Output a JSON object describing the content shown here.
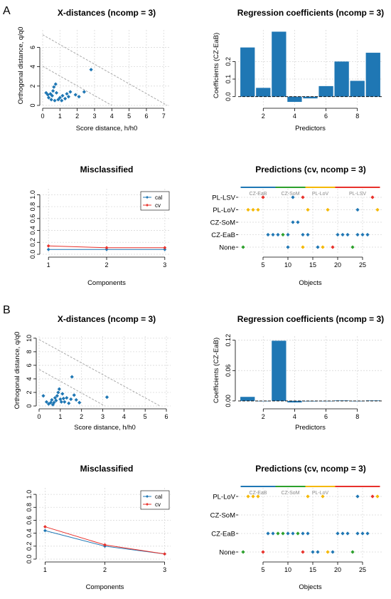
{
  "panel_labels": [
    "A",
    "B"
  ],
  "colors": {
    "blue": "#1f77b4",
    "red": "#e8312b",
    "green": "#2ca02c",
    "orange": "#f5b800",
    "grid": "#d9d9d9",
    "limit": "#a0a0a0"
  },
  "legend_labels": {
    "cal": "cal",
    "cv": "cv"
  },
  "chart_data": [
    {
      "id": "A-xdist",
      "panel": "A",
      "type": "scatter",
      "title": "X-distances (ncomp = 3)",
      "xlabel": "Score distance, h/h0",
      "ylabel": "Orthogonal distance, q/q0",
      "xlim": [
        0,
        7.4
      ],
      "ylim": [
        0,
        7.8
      ],
      "xticks": [
        0,
        1,
        2,
        3,
        4,
        5,
        6,
        7
      ],
      "yticks": [
        0,
        2,
        4,
        6
      ],
      "points": [
        [
          0.2,
          1.3
        ],
        [
          0.3,
          1.1
        ],
        [
          0.35,
          0.8
        ],
        [
          0.45,
          1.2
        ],
        [
          0.5,
          0.6
        ],
        [
          0.55,
          1.0
        ],
        [
          0.6,
          1.5
        ],
        [
          0.65,
          1.9
        ],
        [
          0.7,
          0.5
        ],
        [
          0.75,
          2.2
        ],
        [
          0.8,
          1.3
        ],
        [
          0.9,
          0.6
        ],
        [
          1.0,
          0.8
        ],
        [
          1.1,
          0.5
        ],
        [
          1.15,
          1.0
        ],
        [
          1.3,
          0.7
        ],
        [
          1.4,
          1.2
        ],
        [
          1.5,
          0.9
        ],
        [
          1.6,
          1.4
        ],
        [
          1.9,
          1.1
        ],
        [
          2.1,
          0.9
        ],
        [
          2.4,
          1.4
        ],
        [
          2.8,
          3.7
        ]
      ],
      "limit_lines": [
        {
          "x0": 0,
          "y0": 4.05,
          "x1": 4.0,
          "y1": 0
        },
        {
          "x0": 0,
          "y0": 7.3,
          "x1": 7.2,
          "y1": 0
        }
      ]
    },
    {
      "id": "A-coef",
      "panel": "A",
      "type": "bar",
      "title": "Regression coefficients (ncomp = 3)",
      "xlabel": "Predictors",
      "ylabel": "Coefficients (CZ-EaB)",
      "categories": [
        1,
        2,
        3,
        4,
        5,
        6,
        7,
        8,
        9
      ],
      "values": [
        0.28,
        0.05,
        0.37,
        -0.03,
        -0.01,
        0.06,
        0.2,
        0.09,
        0.25
      ],
      "xlim": [
        0.4,
        9.6
      ],
      "ylim": [
        -0.05,
        0.38
      ],
      "xticks": [
        2,
        4,
        6,
        8
      ],
      "yticks": [
        0.0,
        0.1,
        0.2
      ],
      "ytick_labels": [
        "0.0",
        "0.1",
        "0.2"
      ]
    },
    {
      "id": "A-mis",
      "panel": "A",
      "type": "line",
      "title": "Misclassified",
      "xlabel": "Components",
      "ylabel": "",
      "x": [
        1,
        2,
        3
      ],
      "xlim": [
        0.9,
        3.1
      ],
      "ylim": [
        0,
        1.1
      ],
      "xticks": [
        1,
        2,
        3
      ],
      "yticks": [
        0,
        0.2,
        0.4,
        0.6,
        0.8,
        1.0
      ],
      "ytick_labels": [
        "0.0",
        "0.2",
        "0.4",
        "0.6",
        "0.8",
        "1.0"
      ],
      "series": [
        {
          "name": "cal",
          "values": [
            0.08,
            0.08,
            0.08
          ]
        },
        {
          "name": "cv",
          "values": [
            0.14,
            0.11,
            0.11
          ]
        }
      ],
      "legend": "top-right"
    },
    {
      "id": "A-pred",
      "panel": "A",
      "type": "scatter",
      "title": "Predictions (cv, ncomp = 3)",
      "xlabel": "Objects",
      "ylabel": "",
      "categories": [
        "None",
        "CZ-EaB",
        "CZ-SoM",
        "PL-LoV",
        "PL-LSV"
      ],
      "xlim": [
        0,
        29
      ],
      "xticks": [
        5,
        10,
        15,
        20,
        25
      ],
      "groups": [
        {
          "name": "CZ-EaB",
          "from": 1,
          "to": 7,
          "color": "#1f77b4"
        },
        {
          "name": "CZ-SoM",
          "from": 8,
          "to": 13,
          "color": "#2ca02c"
        },
        {
          "name": "PL-LoV",
          "from": 14,
          "to": 19,
          "color": "#f5b800"
        },
        {
          "name": "PL-LSV",
          "from": 20,
          "to": 28,
          "color": "#e8312b"
        }
      ],
      "points": [
        {
          "x": 1,
          "y": "None",
          "c": "green"
        },
        {
          "x": 10,
          "y": "None",
          "c": "blue"
        },
        {
          "x": 13,
          "y": "None",
          "c": "orange"
        },
        {
          "x": 16,
          "y": "None",
          "c": "blue"
        },
        {
          "x": 17,
          "y": "None",
          "c": "orange"
        },
        {
          "x": 19,
          "y": "None",
          "c": "red"
        },
        {
          "x": 23,
          "y": "None",
          "c": "green"
        },
        {
          "x": 6,
          "y": "CZ-EaB",
          "c": "blue"
        },
        {
          "x": 7,
          "y": "CZ-EaB",
          "c": "blue"
        },
        {
          "x": 8,
          "y": "CZ-EaB",
          "c": "blue"
        },
        {
          "x": 9,
          "y": "CZ-EaB",
          "c": "green"
        },
        {
          "x": 10,
          "y": "CZ-EaB",
          "c": "blue"
        },
        {
          "x": 13,
          "y": "CZ-EaB",
          "c": "blue"
        },
        {
          "x": 14,
          "y": "CZ-EaB",
          "c": "blue"
        },
        {
          "x": 20,
          "y": "CZ-EaB",
          "c": "blue"
        },
        {
          "x": 21,
          "y": "CZ-EaB",
          "c": "blue"
        },
        {
          "x": 22,
          "y": "CZ-EaB",
          "c": "blue"
        },
        {
          "x": 24,
          "y": "CZ-EaB",
          "c": "blue"
        },
        {
          "x": 25,
          "y": "CZ-EaB",
          "c": "blue"
        },
        {
          "x": 26,
          "y": "CZ-EaB",
          "c": "blue"
        },
        {
          "x": 11,
          "y": "CZ-SoM",
          "c": "blue"
        },
        {
          "x": 12,
          "y": "CZ-SoM",
          "c": "blue"
        },
        {
          "x": 2,
          "y": "PL-LoV",
          "c": "orange"
        },
        {
          "x": 3,
          "y": "PL-LoV",
          "c": "orange"
        },
        {
          "x": 4,
          "y": "PL-LoV",
          "c": "orange"
        },
        {
          "x": 14,
          "y": "PL-LoV",
          "c": "orange"
        },
        {
          "x": 18,
          "y": "PL-LoV",
          "c": "orange"
        },
        {
          "x": 24,
          "y": "PL-LoV",
          "c": "blue"
        },
        {
          "x": 28,
          "y": "PL-LoV",
          "c": "orange"
        },
        {
          "x": 5,
          "y": "PL-LSV",
          "c": "red"
        },
        {
          "x": 11,
          "y": "PL-LSV",
          "c": "blue"
        },
        {
          "x": 13,
          "y": "PL-LSV",
          "c": "red"
        },
        {
          "x": 27,
          "y": "PL-LSV",
          "c": "red"
        }
      ]
    },
    {
      "id": "B-xdist",
      "panel": "B",
      "type": "scatter",
      "title": "X-distances (ncomp = 3)",
      "xlabel": "Score distance, h/h0",
      "ylabel": "Orthogonal distance, q/q0",
      "xlim": [
        0,
        6.2
      ],
      "ylim": [
        0,
        10.3
      ],
      "xticks": [
        0,
        1,
        2,
        3,
        4,
        5,
        6
      ],
      "yticks": [
        0,
        2,
        4,
        6,
        8,
        10
      ],
      "points": [
        [
          0.2,
          1.5
        ],
        [
          0.35,
          0.6
        ],
        [
          0.45,
          0.3
        ],
        [
          0.55,
          0.5
        ],
        [
          0.6,
          0.9
        ],
        [
          0.65,
          0.2
        ],
        [
          0.7,
          0.5
        ],
        [
          0.75,
          1.2
        ],
        [
          0.8,
          0.8
        ],
        [
          0.85,
          1.5
        ],
        [
          0.9,
          2.0
        ],
        [
          0.95,
          2.5
        ],
        [
          1.0,
          1.0
        ],
        [
          1.05,
          0.6
        ],
        [
          1.1,
          1.8
        ],
        [
          1.15,
          1.1
        ],
        [
          1.2,
          0.6
        ],
        [
          1.3,
          1.2
        ],
        [
          1.4,
          0.4
        ],
        [
          1.5,
          1.0
        ],
        [
          1.55,
          4.3
        ],
        [
          1.65,
          1.6
        ],
        [
          1.75,
          0.9
        ],
        [
          1.9,
          0.5
        ],
        [
          3.2,
          1.3
        ]
      ],
      "limit_lines": [
        {
          "x0": 0,
          "y0": 5.4,
          "x1": 3.1,
          "y1": 0
        },
        {
          "x0": 0,
          "y0": 9.8,
          "x1": 5.7,
          "y1": 0
        }
      ]
    },
    {
      "id": "B-coef",
      "panel": "B",
      "type": "bar",
      "title": "Regression coefficients (ncomp = 3)",
      "xlabel": "Predictors",
      "ylabel": "Coefficients (CZ-EaB)",
      "categories": [
        1,
        2,
        3,
        4,
        5,
        6,
        7,
        8,
        9
      ],
      "values": [
        0.008,
        0.0,
        0.119,
        -0.003,
        -0.001,
        0.0,
        0.001,
        0.0,
        0.001
      ],
      "xlim": [
        0.4,
        9.6
      ],
      "ylim": [
        -0.01,
        0.128
      ],
      "xticks": [
        2,
        4,
        6,
        8
      ],
      "yticks": [
        0.0,
        0.06,
        0.12
      ],
      "ytick_labels": [
        "0.00",
        "0.06",
        "0.12"
      ]
    },
    {
      "id": "B-mis",
      "panel": "B",
      "type": "line",
      "title": "Misclassified",
      "xlabel": "Components",
      "ylabel": "",
      "x": [
        1,
        2,
        3
      ],
      "xlim": [
        0.9,
        3.1
      ],
      "ylim": [
        0,
        1.1
      ],
      "xticks": [
        1,
        2,
        3
      ],
      "yticks": [
        0,
        0.2,
        0.4,
        0.6,
        0.8,
        1.0
      ],
      "ytick_labels": [
        "0.0",
        "0.2",
        "0.4",
        "0.6",
        "0.8",
        "1.0"
      ],
      "series": [
        {
          "name": "cal",
          "values": [
            0.44,
            0.2,
            0.08
          ]
        },
        {
          "name": "cv",
          "values": [
            0.5,
            0.22,
            0.08
          ]
        }
      ],
      "legend": "top-right"
    },
    {
      "id": "B-pred",
      "panel": "B",
      "type": "scatter",
      "title": "Predictions (cv, ncomp = 3)",
      "xlabel": "Objects",
      "ylabel": "",
      "categories": [
        "None",
        "CZ-EaB",
        "CZ-SoM",
        "PL-LoV"
      ],
      "xlim": [
        0,
        29
      ],
      "xticks": [
        5,
        10,
        15,
        20,
        25
      ],
      "groups": [
        {
          "name": "CZ-EaB",
          "from": 1,
          "to": 7,
          "color": "#1f77b4"
        },
        {
          "name": "CZ-SoM",
          "from": 8,
          "to": 13,
          "color": "#2ca02c"
        },
        {
          "name": "PL-LoV",
          "from": 14,
          "to": 19,
          "color": "#f5b800"
        },
        {
          "name": "",
          "from": 20,
          "to": 28,
          "color": "#e8312b"
        }
      ],
      "points": [
        {
          "x": 1,
          "y": "None",
          "c": "green"
        },
        {
          "x": 5,
          "y": "None",
          "c": "red"
        },
        {
          "x": 13,
          "y": "None",
          "c": "red"
        },
        {
          "x": 15,
          "y": "None",
          "c": "blue"
        },
        {
          "x": 16,
          "y": "None",
          "c": "blue"
        },
        {
          "x": 18,
          "y": "None",
          "c": "orange"
        },
        {
          "x": 19,
          "y": "None",
          "c": "blue"
        },
        {
          "x": 23,
          "y": "None",
          "c": "green"
        },
        {
          "x": 6,
          "y": "CZ-EaB",
          "c": "blue"
        },
        {
          "x": 7,
          "y": "CZ-EaB",
          "c": "blue"
        },
        {
          "x": 8,
          "y": "CZ-EaB",
          "c": "green"
        },
        {
          "x": 9,
          "y": "CZ-EaB",
          "c": "green"
        },
        {
          "x": 10,
          "y": "CZ-EaB",
          "c": "blue"
        },
        {
          "x": 11,
          "y": "CZ-EaB",
          "c": "blue"
        },
        {
          "x": 12,
          "y": "CZ-EaB",
          "c": "green"
        },
        {
          "x": 13,
          "y": "CZ-EaB",
          "c": "blue"
        },
        {
          "x": 14,
          "y": "CZ-EaB",
          "c": "blue"
        },
        {
          "x": 20,
          "y": "CZ-EaB",
          "c": "blue"
        },
        {
          "x": 21,
          "y": "CZ-EaB",
          "c": "blue"
        },
        {
          "x": 22,
          "y": "CZ-EaB",
          "c": "blue"
        },
        {
          "x": 24,
          "y": "CZ-EaB",
          "c": "blue"
        },
        {
          "x": 25,
          "y": "CZ-EaB",
          "c": "blue"
        },
        {
          "x": 26,
          "y": "CZ-EaB",
          "c": "blue"
        },
        {
          "x": 2,
          "y": "PL-LoV",
          "c": "orange"
        },
        {
          "x": 3,
          "y": "PL-LoV",
          "c": "orange"
        },
        {
          "x": 4,
          "y": "PL-LoV",
          "c": "orange"
        },
        {
          "x": 14,
          "y": "PL-LoV",
          "c": "orange"
        },
        {
          "x": 17,
          "y": "PL-LoV",
          "c": "orange"
        },
        {
          "x": 24,
          "y": "PL-LoV",
          "c": "blue"
        },
        {
          "x": 27,
          "y": "PL-LoV",
          "c": "red"
        },
        {
          "x": 28,
          "y": "PL-LoV",
          "c": "orange"
        }
      ]
    }
  ]
}
